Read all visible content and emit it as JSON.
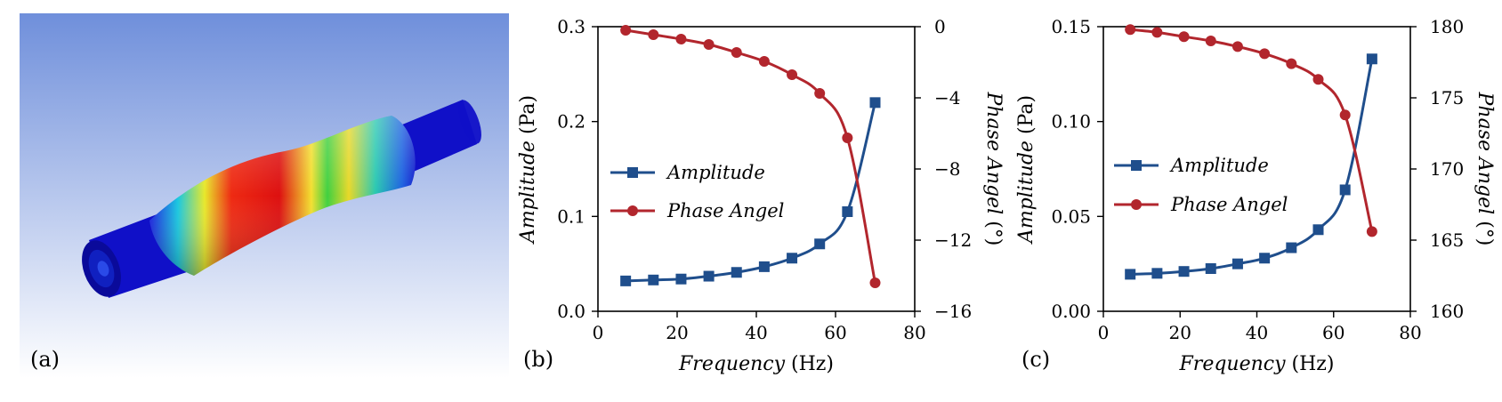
{
  "panels": {
    "a": {
      "label": "(a)"
    },
    "b": {
      "label": "(b)"
    },
    "c": {
      "label": "(c)"
    }
  },
  "colors": {
    "amplitude": "#1f4e8c",
    "phase": "#b2262d",
    "sky_top": "#6f8fdb",
    "sky_bottom": "#ffffff",
    "pipe_base": "#1010c8"
  },
  "icons": {
    "model": "deformed-pipe-contour-icon"
  },
  "chart_data": [
    {
      "id": "b",
      "type": "line",
      "xlabel_italic": "Frequency",
      "xlabel_unit": " (Hz)",
      "ylabel_italic": "Amplitude",
      "ylabel_unit": " (Pa)",
      "y2label_italic": "Phase Angel",
      "y2label_unit": " (°)",
      "xlim": [
        0,
        80
      ],
      "xticks": [
        "0",
        "20",
        "40",
        "60",
        "80"
      ],
      "xtick_values": [
        0,
        20,
        40,
        60,
        80
      ],
      "ylim": [
        0,
        0.3
      ],
      "yticks": [
        "0.0",
        "0.1",
        "0.2",
        "0.3"
      ],
      "ytick_values": [
        0,
        0.1,
        0.2,
        0.3
      ],
      "y2lim": [
        -16,
        0
      ],
      "y2ticks": [
        "0",
        "−4",
        "−8",
        "−12",
        "−16"
      ],
      "y2tick_values": [
        0,
        -4,
        -8,
        -12,
        -16
      ],
      "x": [
        7,
        14,
        21,
        28,
        35,
        42,
        49,
        56,
        63,
        70
      ],
      "series": [
        {
          "name": "Amplitude",
          "axis": "left",
          "marker": "square",
          "values": [
            0.032,
            0.033,
            0.034,
            0.037,
            0.041,
            0.047,
            0.056,
            0.071,
            0.105,
            0.22
          ]
        },
        {
          "name": "Phase Angel",
          "axis": "right",
          "marker": "circle",
          "values": [
            -0.2,
            -0.45,
            -0.7,
            -1.0,
            -1.45,
            -1.95,
            -2.7,
            -3.75,
            -6.25,
            -14.4
          ]
        }
      ],
      "legend": [
        "Amplitude",
        "Phase Angel"
      ],
      "legend_position": "left"
    },
    {
      "id": "c",
      "type": "line",
      "xlabel_italic": "Frequency",
      "xlabel_unit": " (Hz)",
      "ylabel_italic": "Amplitude",
      "ylabel_unit": " (Pa)",
      "y2label_italic": "Phase Angel",
      "y2label_unit": " (°)",
      "xlim": [
        0,
        80
      ],
      "xticks": [
        "0",
        "20",
        "40",
        "60",
        "80"
      ],
      "xtick_values": [
        0,
        20,
        40,
        60,
        80
      ],
      "ylim": [
        0,
        0.15
      ],
      "yticks": [
        "0.00",
        "0.05",
        "0.10",
        "0.15"
      ],
      "ytick_values": [
        0,
        0.05,
        0.1,
        0.15
      ],
      "y2lim": [
        160,
        180
      ],
      "y2ticks": [
        "180",
        "175",
        "170",
        "165",
        "160"
      ],
      "y2tick_values": [
        180,
        175,
        170,
        165,
        160
      ],
      "x": [
        7,
        14,
        21,
        28,
        35,
        42,
        49,
        56,
        63,
        70
      ],
      "series": [
        {
          "name": "Amplitude",
          "axis": "left",
          "marker": "square",
          "values": [
            0.0195,
            0.02,
            0.021,
            0.0225,
            0.025,
            0.028,
            0.0335,
            0.043,
            0.064,
            0.133
          ]
        },
        {
          "name": "Phase Angel",
          "axis": "right",
          "marker": "circle",
          "values": [
            179.8,
            179.6,
            179.3,
            179.0,
            178.6,
            178.1,
            177.4,
            176.3,
            173.8,
            165.6
          ]
        }
      ],
      "legend": [
        "Amplitude",
        "Phase Angel"
      ],
      "legend_position": "left"
    }
  ]
}
